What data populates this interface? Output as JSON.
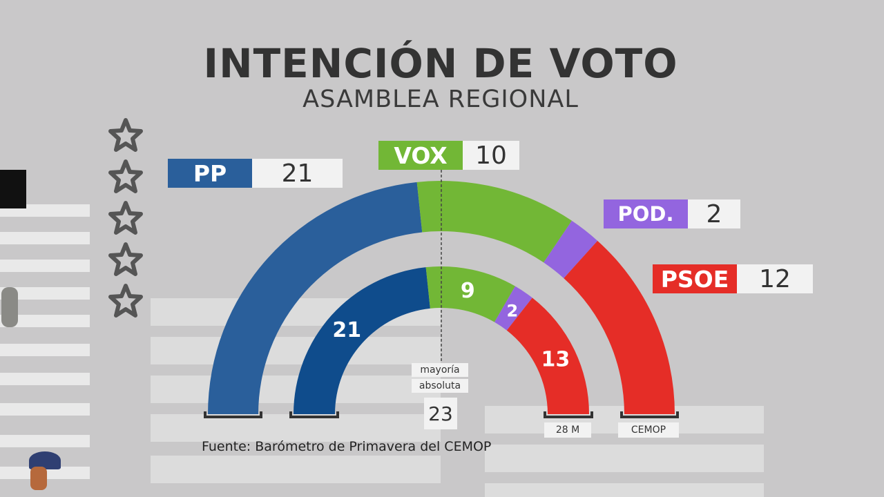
{
  "title": "INTENCIÓN DE VOTO",
  "subtitle": "ASAMBLEA REGIONAL",
  "source": "Fuente: Barómetro de Primavera del CEMOP",
  "majority": {
    "line1": "mayoría",
    "line2": "absoluta",
    "value": "23"
  },
  "outer_tag": "CEMOP",
  "inner_tag": "28 M",
  "labels": {
    "pp": {
      "name": "PP",
      "seats": "21"
    },
    "vox": {
      "name": "VOX",
      "seats": "10"
    },
    "pod": {
      "name": "POD.",
      "seats": "2"
    },
    "psoe": {
      "name": "PSOE",
      "seats": "12"
    }
  },
  "colors": {
    "PP": "#2a5f9b",
    "PP_inner": "#0f4c8c",
    "VOX": "#72b736",
    "POD.": "#9365df",
    "PSOE": "#e52d27"
  },
  "chart_data": {
    "type": "semicircle",
    "total_seats": 45,
    "majority": 23,
    "series": [
      {
        "name": "CEMOP",
        "parties": [
          "PP",
          "VOX",
          "POD.",
          "PSOE"
        ],
        "values": [
          21,
          10,
          2,
          12
        ]
      },
      {
        "name": "28 M",
        "parties": [
          "PP",
          "VOX",
          "POD.",
          "PSOE"
        ],
        "values": [
          21,
          9,
          2,
          13
        ]
      }
    ]
  }
}
